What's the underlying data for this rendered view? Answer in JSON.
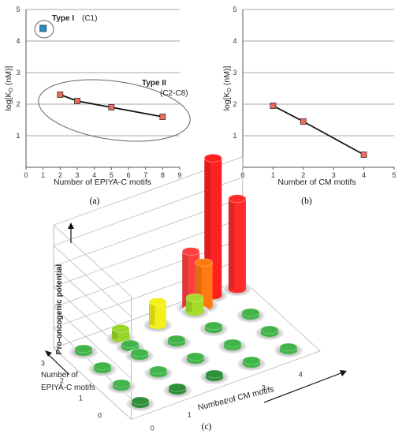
{
  "chart_data": [
    {
      "type": "line",
      "panel_label": "(a)",
      "xlabel": "Number of EPIYA-C motifs",
      "ylabel": "log[K_D (nM)]",
      "xlim": [
        0,
        9
      ],
      "ylim": [
        0,
        5
      ],
      "xticks": [
        "0",
        "1",
        "2",
        "3",
        "4",
        "5",
        "6",
        "7",
        "8",
        "9"
      ],
      "yticks": [
        "1",
        "2",
        "3",
        "4",
        "5"
      ],
      "grid": "horizontal",
      "series": [
        {
          "name": "Type I",
          "x": [
            1
          ],
          "y": [
            4.4
          ],
          "color": "#1f8fd0",
          "marker": "square"
        },
        {
          "name": "Type II",
          "x": [
            2,
            3,
            5,
            8
          ],
          "y": [
            2.3,
            2.1,
            1.9,
            1.6
          ],
          "color": "#f06a5a",
          "marker": "square"
        }
      ],
      "annotations": [
        {
          "label": "Type I",
          "sub": "(C1)"
        },
        {
          "label": "Type II",
          "sub": "(C2-C8)"
        }
      ]
    },
    {
      "type": "line",
      "panel_label": "(b)",
      "xlabel": "Number of CM motifs",
      "ylabel": "log[K_D (nM)]",
      "xlim": [
        0,
        5
      ],
      "ylim": [
        0,
        5
      ],
      "xticks": [
        "0",
        "1",
        "2",
        "3",
        "4",
        "5"
      ],
      "yticks": [
        "1",
        "2",
        "3",
        "4",
        "5"
      ],
      "grid": "horizontal",
      "series": [
        {
          "x": [
            1,
            2,
            4
          ],
          "y": [
            1.95,
            1.45,
            0.4
          ],
          "color": "#f06a5a",
          "marker": "square"
        }
      ]
    },
    {
      "type": "bar3d",
      "panel_label": "(c)",
      "xlabel": "Number of CM motifs",
      "ylabel": "Number of EPIYA-C motifs",
      "zlabel": "Pro-oncogenic potential",
      "xticks": [
        "0",
        "1",
        "2",
        "3",
        "4"
      ],
      "yticks": [
        "0",
        "1",
        "2",
        "3"
      ],
      "bars": [
        {
          "cm": 0,
          "epiya": 0,
          "value": 0.0,
          "color": "#2f8f3a"
        },
        {
          "cm": 1,
          "epiya": 0,
          "value": 0.0,
          "color": "#2f8f3a"
        },
        {
          "cm": 2,
          "epiya": 0,
          "value": 0.0,
          "color": "#2f8f3a"
        },
        {
          "cm": 3,
          "epiya": 0,
          "value": 0.0,
          "color": "#41b54a"
        },
        {
          "cm": 4,
          "epiya": 0,
          "value": 0.0,
          "color": "#41b54a"
        },
        {
          "cm": 0,
          "epiya": 1,
          "value": 0.0,
          "color": "#41b54a"
        },
        {
          "cm": 1,
          "epiya": 1,
          "value": 0.0,
          "color": "#41b54a"
        },
        {
          "cm": 2,
          "epiya": 1,
          "value": 0.0,
          "color": "#41b54a"
        },
        {
          "cm": 3,
          "epiya": 1,
          "value": 0.0,
          "color": "#41b54a"
        },
        {
          "cm": 4,
          "epiya": 1,
          "value": 0.0,
          "color": "#41b54a"
        },
        {
          "cm": 0,
          "epiya": 2,
          "value": 0.0,
          "color": "#41b54a"
        },
        {
          "cm": 1,
          "epiya": 2,
          "value": 0.0,
          "color": "#41b54a"
        },
        {
          "cm": 2,
          "epiya": 2,
          "value": 0.0,
          "color": "#41b54a"
        },
        {
          "cm": 3,
          "epiya": 2,
          "value": 0.0,
          "color": "#41b54a"
        },
        {
          "cm": 4,
          "epiya": 2,
          "value": 0.0,
          "color": "#41b54a"
        },
        {
          "cm": 0,
          "epiya": 3,
          "value": 0.0,
          "color": "#41b54a"
        },
        {
          "cm": 1,
          "epiya": 3,
          "value": 0.05,
          "color": "#9ad62a"
        },
        {
          "cm": 2,
          "epiya": 3,
          "value": 0.15,
          "color": "#f2f21a"
        },
        {
          "cm": 3,
          "epiya": 3,
          "value": 0.08,
          "color": "#a6dd2a"
        },
        {
          "cm": 1,
          "epiya": 2.5,
          "value": 0.0,
          "color": "#41b54a"
        },
        {
          "cm": 3,
          "epiya": 3.2,
          "value": 0.4,
          "color": "#ff4040"
        },
        {
          "cm": 3.3,
          "epiya": 3.1,
          "value": 0.3,
          "color": "#ff7a10"
        },
        {
          "cm": 3.7,
          "epiya": 3.4,
          "value": 1.0,
          "color": "#ff2020"
        },
        {
          "cm": 4.3,
          "epiya": 3.3,
          "value": 0.65,
          "color": "#ff2a2a"
        }
      ]
    }
  ]
}
